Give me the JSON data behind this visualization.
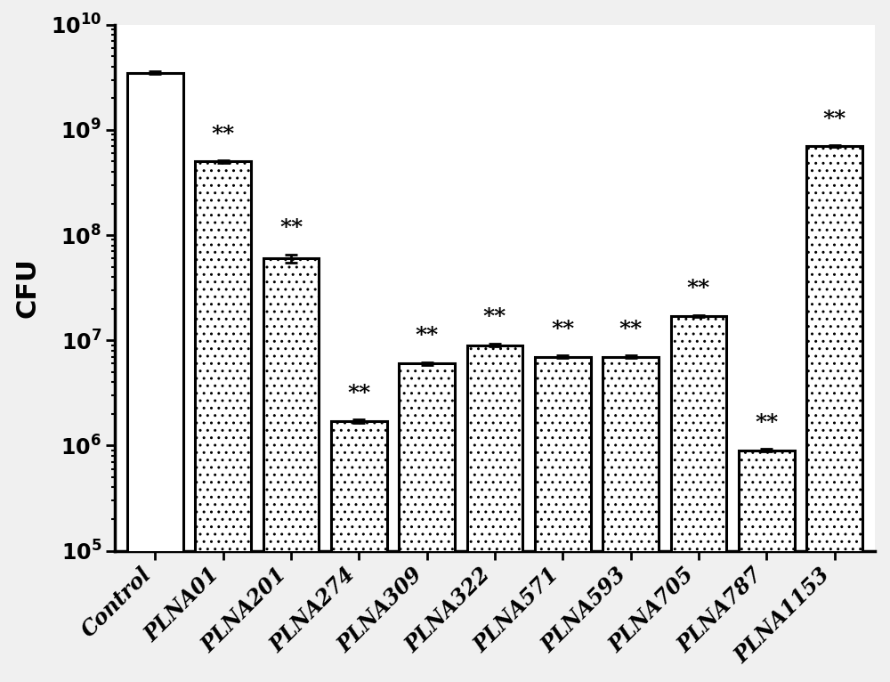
{
  "categories": [
    "Control",
    "PLNA01",
    "PLNA201",
    "PLNA274",
    "PLNA309",
    "PLNA322",
    "PLNA571",
    "PLNA593",
    "PLNA705",
    "PLNA787",
    "PLNA1153"
  ],
  "values": [
    3500000000.0,
    500000000.0,
    60000000.0,
    1700000.0,
    6000000.0,
    9000000.0,
    7000000.0,
    7000000.0,
    17000000.0,
    900000.0,
    700000000.0
  ],
  "errors": [
    80000000.0,
    12000000.0,
    5000000.0,
    60000.0,
    200000.0,
    250000.0,
    150000.0,
    150000.0,
    400000.0,
    25000.0,
    12000000.0
  ],
  "is_control": [
    true,
    false,
    false,
    false,
    false,
    false,
    false,
    false,
    false,
    false,
    false
  ],
  "show_stars": [
    false,
    true,
    true,
    true,
    true,
    true,
    true,
    true,
    true,
    true,
    true
  ],
  "ylabel": "CFU",
  "ylim_low": 100000.0,
  "ylim_high": 10000000000.0,
  "bar_width": 0.82,
  "dotted_fill_color": "#ffffff",
  "control_fill_color": "#ffffff",
  "edge_color": "#000000",
  "star_color": "#000000",
  "star_text": "**",
  "label_fontsize": 20,
  "tick_fontsize": 15,
  "star_fontsize": 18,
  "xticklabel_fontsize": 17
}
